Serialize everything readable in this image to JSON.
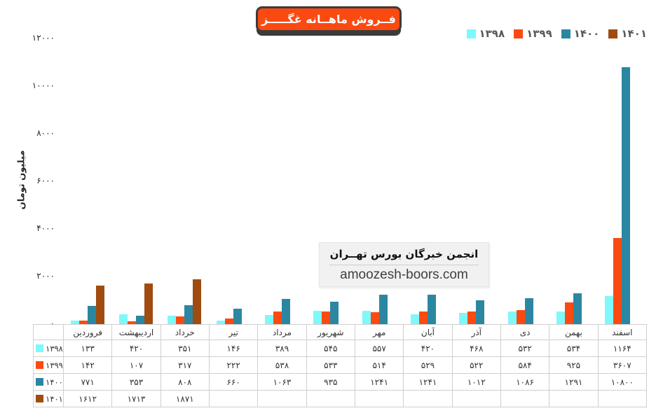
{
  "header": {
    "title": "فــروش ماهــانه غگـــــز"
  },
  "y_axis": {
    "title": "میلیون تومان",
    "ticks": [
      {
        "label": "۱۲۰۰۰",
        "value": 12000
      },
      {
        "label": "۱۰۰۰۰",
        "value": 10000
      },
      {
        "label": "۸۰۰۰",
        "value": 8000
      },
      {
        "label": "۶۰۰۰",
        "value": 6000
      },
      {
        "label": "۴۰۰۰",
        "value": 4000
      },
      {
        "label": "۲۰۰۰",
        "value": 2000
      },
      {
        "label": "۰",
        "value": 0
      }
    ]
  },
  "watermark": {
    "brand": "انجمن خبرگان بورس تهــران",
    "url": "amoozesh-boors.com"
  },
  "colors": {
    "title_bg": "#FB4A11",
    "title_shadow": "#3B3B3B",
    "legend_text": "#595959",
    "table_border": "#CFCFCF"
  },
  "chart_data": {
    "type": "bar",
    "title": "فروش ماهانه غگز",
    "ylabel": "میلیون تومان",
    "ylim": [
      0,
      12000
    ],
    "y_tick_interval": 2000,
    "grid": false,
    "legend_position": "top-right",
    "categories": [
      "فروردین",
      "اردیبهشت",
      "خرداد",
      "تیر",
      "مرداد",
      "شهریور",
      "مهر",
      "آبان",
      "آذر",
      "دی",
      "بهمن",
      "اسفند"
    ],
    "series": [
      {
        "name": "۱۳۹۸",
        "color": "#7EF8FB",
        "values": [
          133,
          420,
          351,
          146,
          389,
          545,
          557,
          420,
          468,
          532,
          534,
          1164
        ]
      },
      {
        "name": "۱۳۹۹",
        "color": "#FB4A11",
        "values": [
          142,
          107,
          317,
          222,
          538,
          533,
          514,
          529,
          522,
          584,
          925,
          3607
        ]
      },
      {
        "name": "۱۴۰۰",
        "color": "#2B87A1",
        "values": [
          771,
          353,
          808,
          660,
          1063,
          935,
          1241,
          1241,
          1012,
          1086,
          1291,
          10800
        ]
      },
      {
        "name": "۱۴۰۱",
        "color": "#A04B10",
        "values": [
          1612,
          1713,
          1871,
          null,
          null,
          null,
          null,
          null,
          null,
          null,
          null,
          null
        ]
      }
    ]
  }
}
